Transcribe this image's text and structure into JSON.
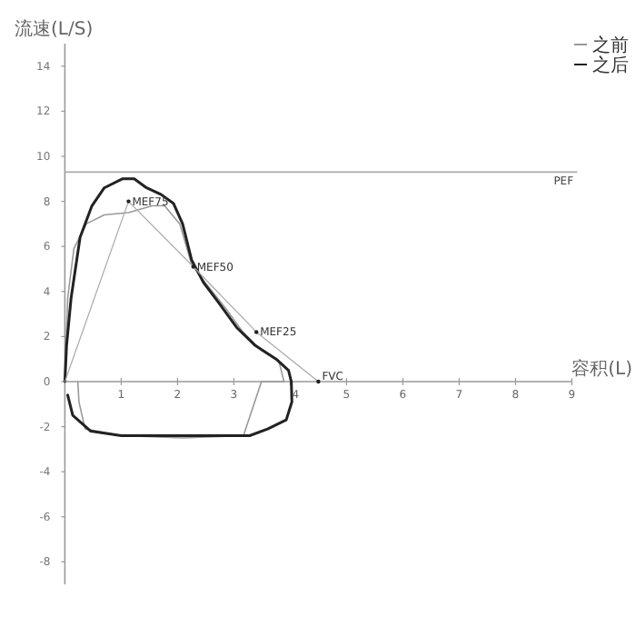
{
  "chart_data": {
    "type": "line",
    "xlabel": "容积(L)",
    "ylabel": "流速(L/S)",
    "xlim": [
      0,
      9
    ],
    "ylim": [
      -9,
      15
    ],
    "xticks": [
      1,
      2,
      3,
      4,
      5,
      6,
      7,
      8,
      9
    ],
    "yticks": [
      -8,
      -6,
      -4,
      -2,
      0,
      2,
      4,
      6,
      8,
      10,
      12,
      14
    ],
    "grid": false,
    "legend": "top right",
    "marker": "none",
    "line_style": "solid",
    "series": [
      {
        "name": "之前",
        "color": "#999999",
        "x": [
          0,
          0.05,
          0.16,
          0.38,
          0.7,
          1.13,
          1.55,
          1.77,
          2.04,
          2.25,
          2.52,
          2.84,
          3.16,
          3.48,
          3.8,
          3.89,
          3.49,
          3.17,
          2.09,
          1.0,
          0.36,
          0.25,
          0.23
        ],
        "values": [
          0,
          3.7,
          5.9,
          7.0,
          7.4,
          7.5,
          7.8,
          7.8,
          7.0,
          5.2,
          4.3,
          3.3,
          2.2,
          1.4,
          0.9,
          0,
          0,
          -2.4,
          -2.5,
          -2.4,
          -2.1,
          -0.9,
          0
        ]
      },
      {
        "name": "之后",
        "color": "#222222",
        "x": [
          0,
          0.03,
          0.11,
          0.27,
          0.48,
          0.7,
          1.02,
          1.23,
          1.45,
          1.71,
          1.93,
          2.09,
          2.25,
          2.46,
          2.73,
          3.05,
          3.38,
          3.75,
          3.97,
          4.02,
          4.03,
          3.93,
          3.6,
          3.28,
          2.09,
          1.0,
          0.46,
          0.14,
          0.05
        ],
        "values": [
          0,
          1.6,
          3.7,
          6.4,
          7.8,
          8.6,
          9.0,
          9.0,
          8.6,
          8.3,
          7.9,
          7.0,
          5.4,
          4.4,
          3.5,
          2.4,
          1.6,
          1.0,
          0.5,
          0,
          -0.9,
          -1.7,
          -2.1,
          -2.4,
          -2.4,
          -2.4,
          -2.2,
          -1.5,
          -0.6
        ]
      },
      {
        "color": "#aaaaaa",
        "x": [
          0,
          1.13,
          2.28,
          3.4,
          4.5
        ],
        "values": [
          0,
          8.0,
          5.1,
          2.2,
          0
        ]
      }
    ],
    "ref_lines": [
      {
        "axis": "y",
        "value": 9.3,
        "label": "PEF",
        "color": "#aaaaaa"
      }
    ],
    "annotations": [
      {
        "text": "MEF75",
        "x": 1.13,
        "y": 8.0
      },
      {
        "text": "MEF50",
        "x": 2.28,
        "y": 5.1
      },
      {
        "text": "MEF25",
        "x": 3.4,
        "y": 2.2
      },
      {
        "text": "FVC",
        "x": 4.5,
        "y": 0
      }
    ]
  }
}
